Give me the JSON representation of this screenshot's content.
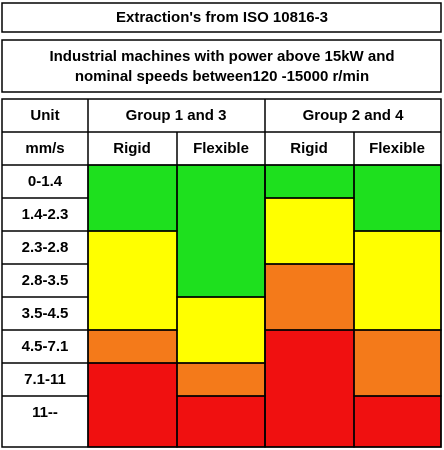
{
  "header": {
    "title": "Extraction's from ISO 10816-3",
    "subtitle": [
      "Industrial machines with power above 15kW and",
      "nominal speeds between120 -15000 r/min"
    ]
  },
  "table": {
    "group_header": [
      "Unit",
      "Group 1 and 3",
      "Group 2 and 4"
    ],
    "sub_header": [
      "mm/s",
      "Rigid",
      "Flexible",
      "Rigid",
      "Flexible"
    ],
    "rows": [
      "0-1.4",
      "1.4-2.3",
      "2.3-2.8",
      "2.8-3.5",
      "3.5-4.5",
      "4.5-7.1",
      "7.1-11",
      "11--"
    ]
  }
}
